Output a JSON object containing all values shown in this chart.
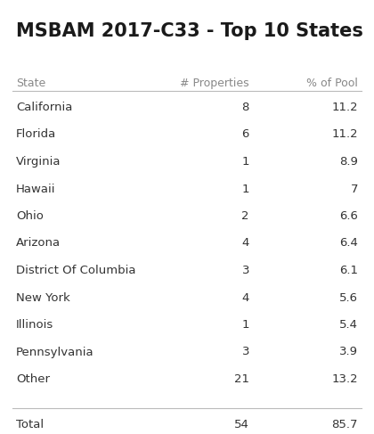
{
  "title": "MSBAM 2017-C33 - Top 10 States",
  "headers": [
    "State",
    "# Properties",
    "% of Pool"
  ],
  "rows": [
    [
      "California",
      "8",
      "11.2"
    ],
    [
      "Florida",
      "6",
      "11.2"
    ],
    [
      "Virginia",
      "1",
      "8.9"
    ],
    [
      "Hawaii",
      "1",
      "7"
    ],
    [
      "Ohio",
      "2",
      "6.6"
    ],
    [
      "Arizona",
      "4",
      "6.4"
    ],
    [
      "District Of Columbia",
      "3",
      "6.1"
    ],
    [
      "New York",
      "4",
      "5.6"
    ],
    [
      "Illinois",
      "1",
      "5.4"
    ],
    [
      "Pennsylvania",
      "3",
      "3.9"
    ],
    [
      "Other",
      "21",
      "13.2"
    ]
  ],
  "total_row": [
    "Total",
    "54",
    "85.7"
  ],
  "bg_color": "#ffffff",
  "title_color": "#1a1a1a",
  "header_color": "#888888",
  "row_color": "#333333",
  "line_color": "#bbbbbb",
  "title_fontsize": 15,
  "header_fontsize": 9,
  "row_fontsize": 9.5
}
